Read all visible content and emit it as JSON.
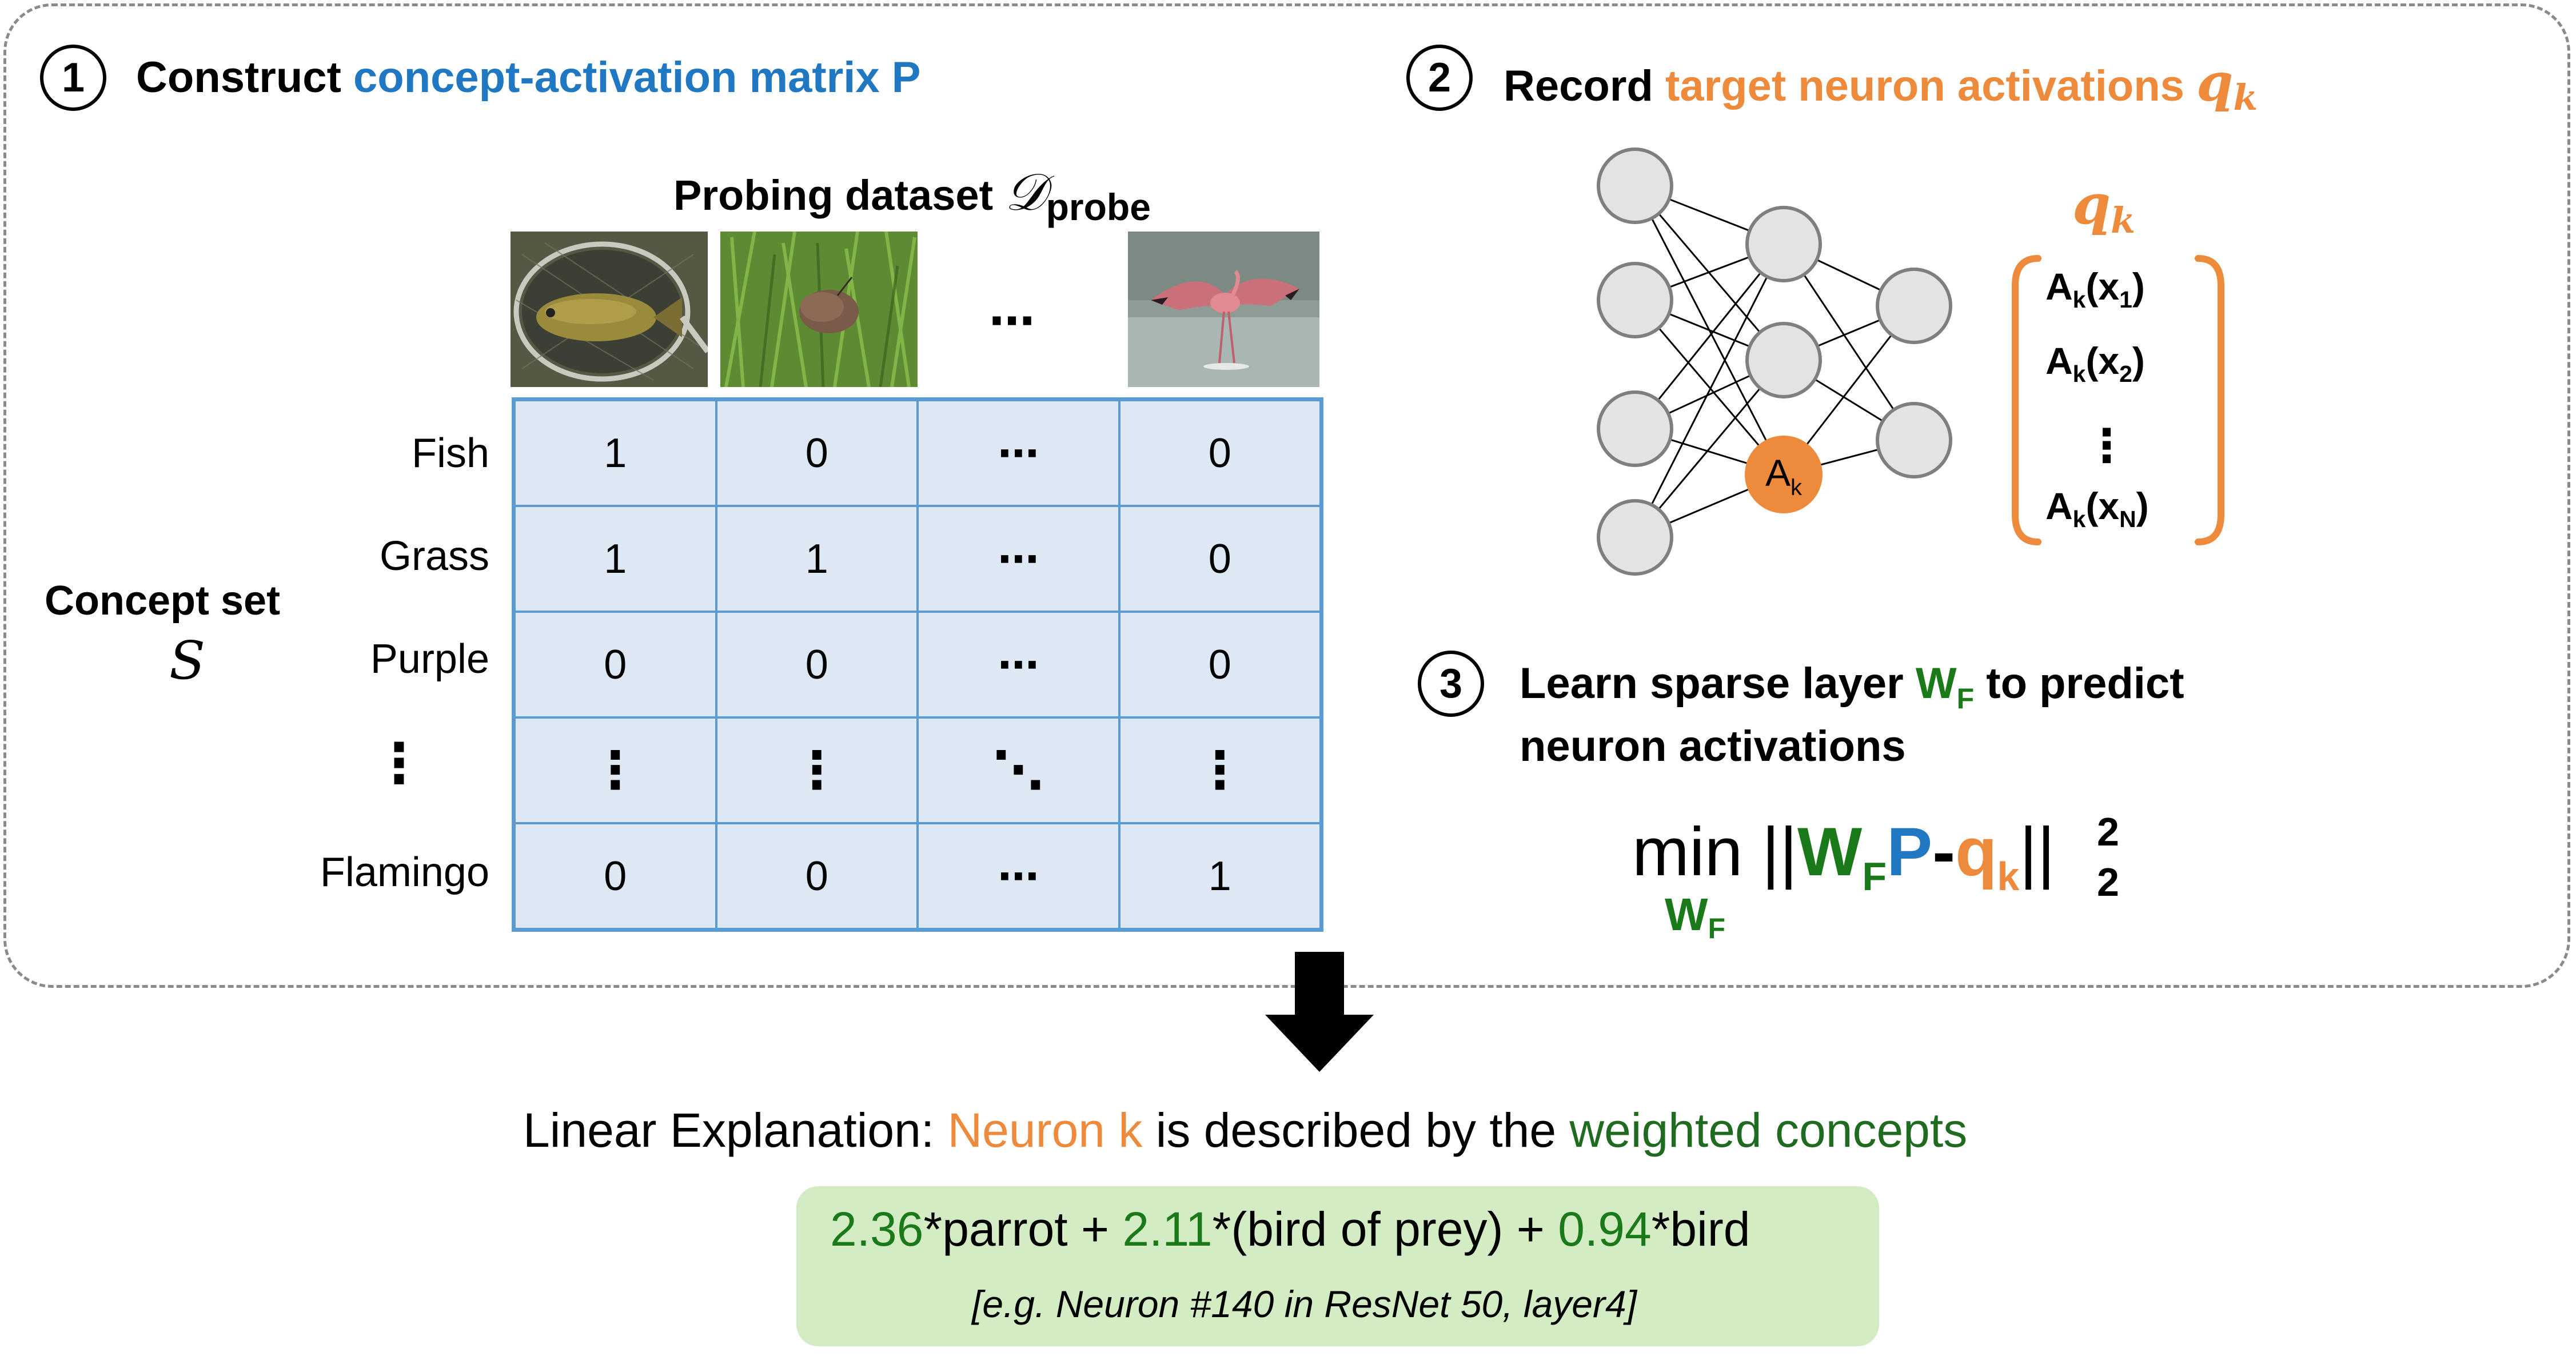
{
  "step1": {
    "number": "1",
    "title_prefix": "Construct ",
    "title_highlight": "concept-activation matrix P"
  },
  "probing": {
    "label_prefix": "Probing dataset ",
    "symbol": "𝒟",
    "subscript": "probe",
    "ellipsis": "⋯"
  },
  "concept_set": {
    "label": "Concept set",
    "symbol": "S"
  },
  "matrix": {
    "rows": [
      {
        "label": "Fish",
        "cells": [
          "1",
          "0",
          "⋯",
          "0"
        ]
      },
      {
        "label": "Grass",
        "cells": [
          "1",
          "1",
          "⋯",
          "0"
        ]
      },
      {
        "label": "Purple",
        "cells": [
          "0",
          "0",
          "⋯",
          "0"
        ]
      },
      {
        "label": "⋮",
        "cells": [
          "⋮",
          "⋮",
          "⋱",
          "⋮"
        ]
      },
      {
        "label": "Flamingo",
        "cells": [
          "0",
          "0",
          "⋯",
          "1"
        ]
      }
    ]
  },
  "step2": {
    "number": "2",
    "title_prefix": "Record ",
    "title_highlight": "target neuron activations ",
    "q_symbol": "q",
    "q_sub": "k"
  },
  "network": {
    "highlight_neuron": "A",
    "highlight_sub": "k"
  },
  "vector": {
    "label": "q",
    "label_sub": "k",
    "entries": [
      {
        "base": "A",
        "sub": "k",
        "arg": "x",
        "argsub": "1"
      },
      {
        "base": "A",
        "sub": "k",
        "arg": "x",
        "argsub": "2"
      },
      {
        "base": "⋮",
        "sub": "",
        "arg": "",
        "argsub": ""
      },
      {
        "base": "A",
        "sub": "k",
        "arg": "x",
        "argsub": "N"
      }
    ]
  },
  "step3": {
    "number": "3",
    "line1_prefix": "Learn sparse layer ",
    "w": "W",
    "w_sub": "F",
    "line1_suffix": " to predict",
    "line2": "neuron activations"
  },
  "formula": {
    "min": "min",
    "min_sub_w": "W",
    "min_sub_f": "F",
    "bars": "||",
    "w": "W",
    "w_sub": "F",
    "p": "P",
    "minus": "-",
    "q": "q",
    "q_sub": "k",
    "sup": "2",
    "sub": "2"
  },
  "explanation": {
    "label": "Linear Explanation:",
    "neuron": "Neuron k",
    "middle": " is described by the ",
    "concepts": "weighted concepts"
  },
  "result": {
    "w1": "2.36",
    "c1": "*parrot + ",
    "w2": "2.11",
    "c2": "*(bird of prey) + ",
    "w3": "0.94",
    "c3": "*bird",
    "note": "[e.g. Neuron #140 in ResNet 50, layer4]"
  },
  "colors": {
    "blue": "#1f78c1",
    "orange": "#ee8a3b",
    "green": "#1a7a1a",
    "matrix_fill": "#dde8f4",
    "matrix_border": "#5b9bd5",
    "result_fill": "#d3ecc4",
    "neuron_fill": "#e3e3e3"
  }
}
